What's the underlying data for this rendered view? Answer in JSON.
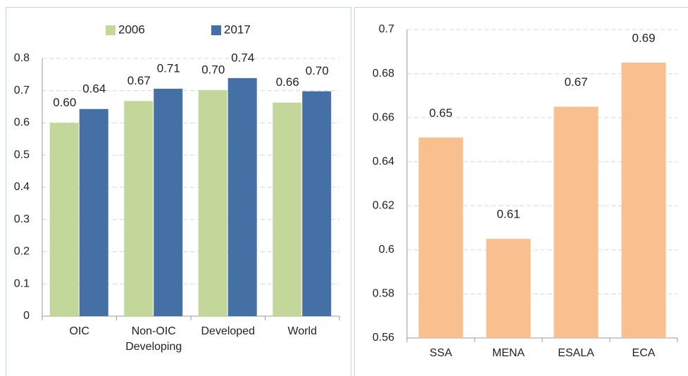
{
  "chart_data": [
    {
      "type": "bar",
      "categories": [
        "OIC",
        "Non-OIC Developing",
        "Developed",
        "World"
      ],
      "series": [
        {
          "name": "2006",
          "color": "#c4d79b",
          "values": [
            0.6,
            0.668,
            0.702,
            0.663
          ],
          "value_labels": [
            "0.60",
            "0.67",
            "0.70",
            "0.66"
          ]
        },
        {
          "name": "2017",
          "color": "#4570a6",
          "values": [
            0.643,
            0.706,
            0.739,
            0.698
          ],
          "value_labels": [
            "0.64",
            "0.71",
            "0.74",
            "0.70"
          ]
        }
      ],
      "ylim": [
        0,
        0.8
      ],
      "yticks": [
        0,
        0.1,
        0.2,
        0.3,
        0.4,
        0.5,
        0.6,
        0.7,
        0.8
      ],
      "grid": true,
      "legend": "top"
    },
    {
      "type": "bar",
      "categories": [
        "SSA",
        "MENA",
        "ESALA",
        "ECA"
      ],
      "values": [
        0.651,
        0.605,
        0.665,
        0.685
      ],
      "value_labels": [
        "0.65",
        "0.61",
        "0.67",
        "0.69"
      ],
      "color": "#f9bf8f",
      "ylim": [
        0.56,
        0.7
      ],
      "yticks": [
        0.56,
        0.58,
        0.6,
        0.62,
        0.64,
        0.66,
        0.68,
        0.7
      ],
      "grid": true
    }
  ]
}
